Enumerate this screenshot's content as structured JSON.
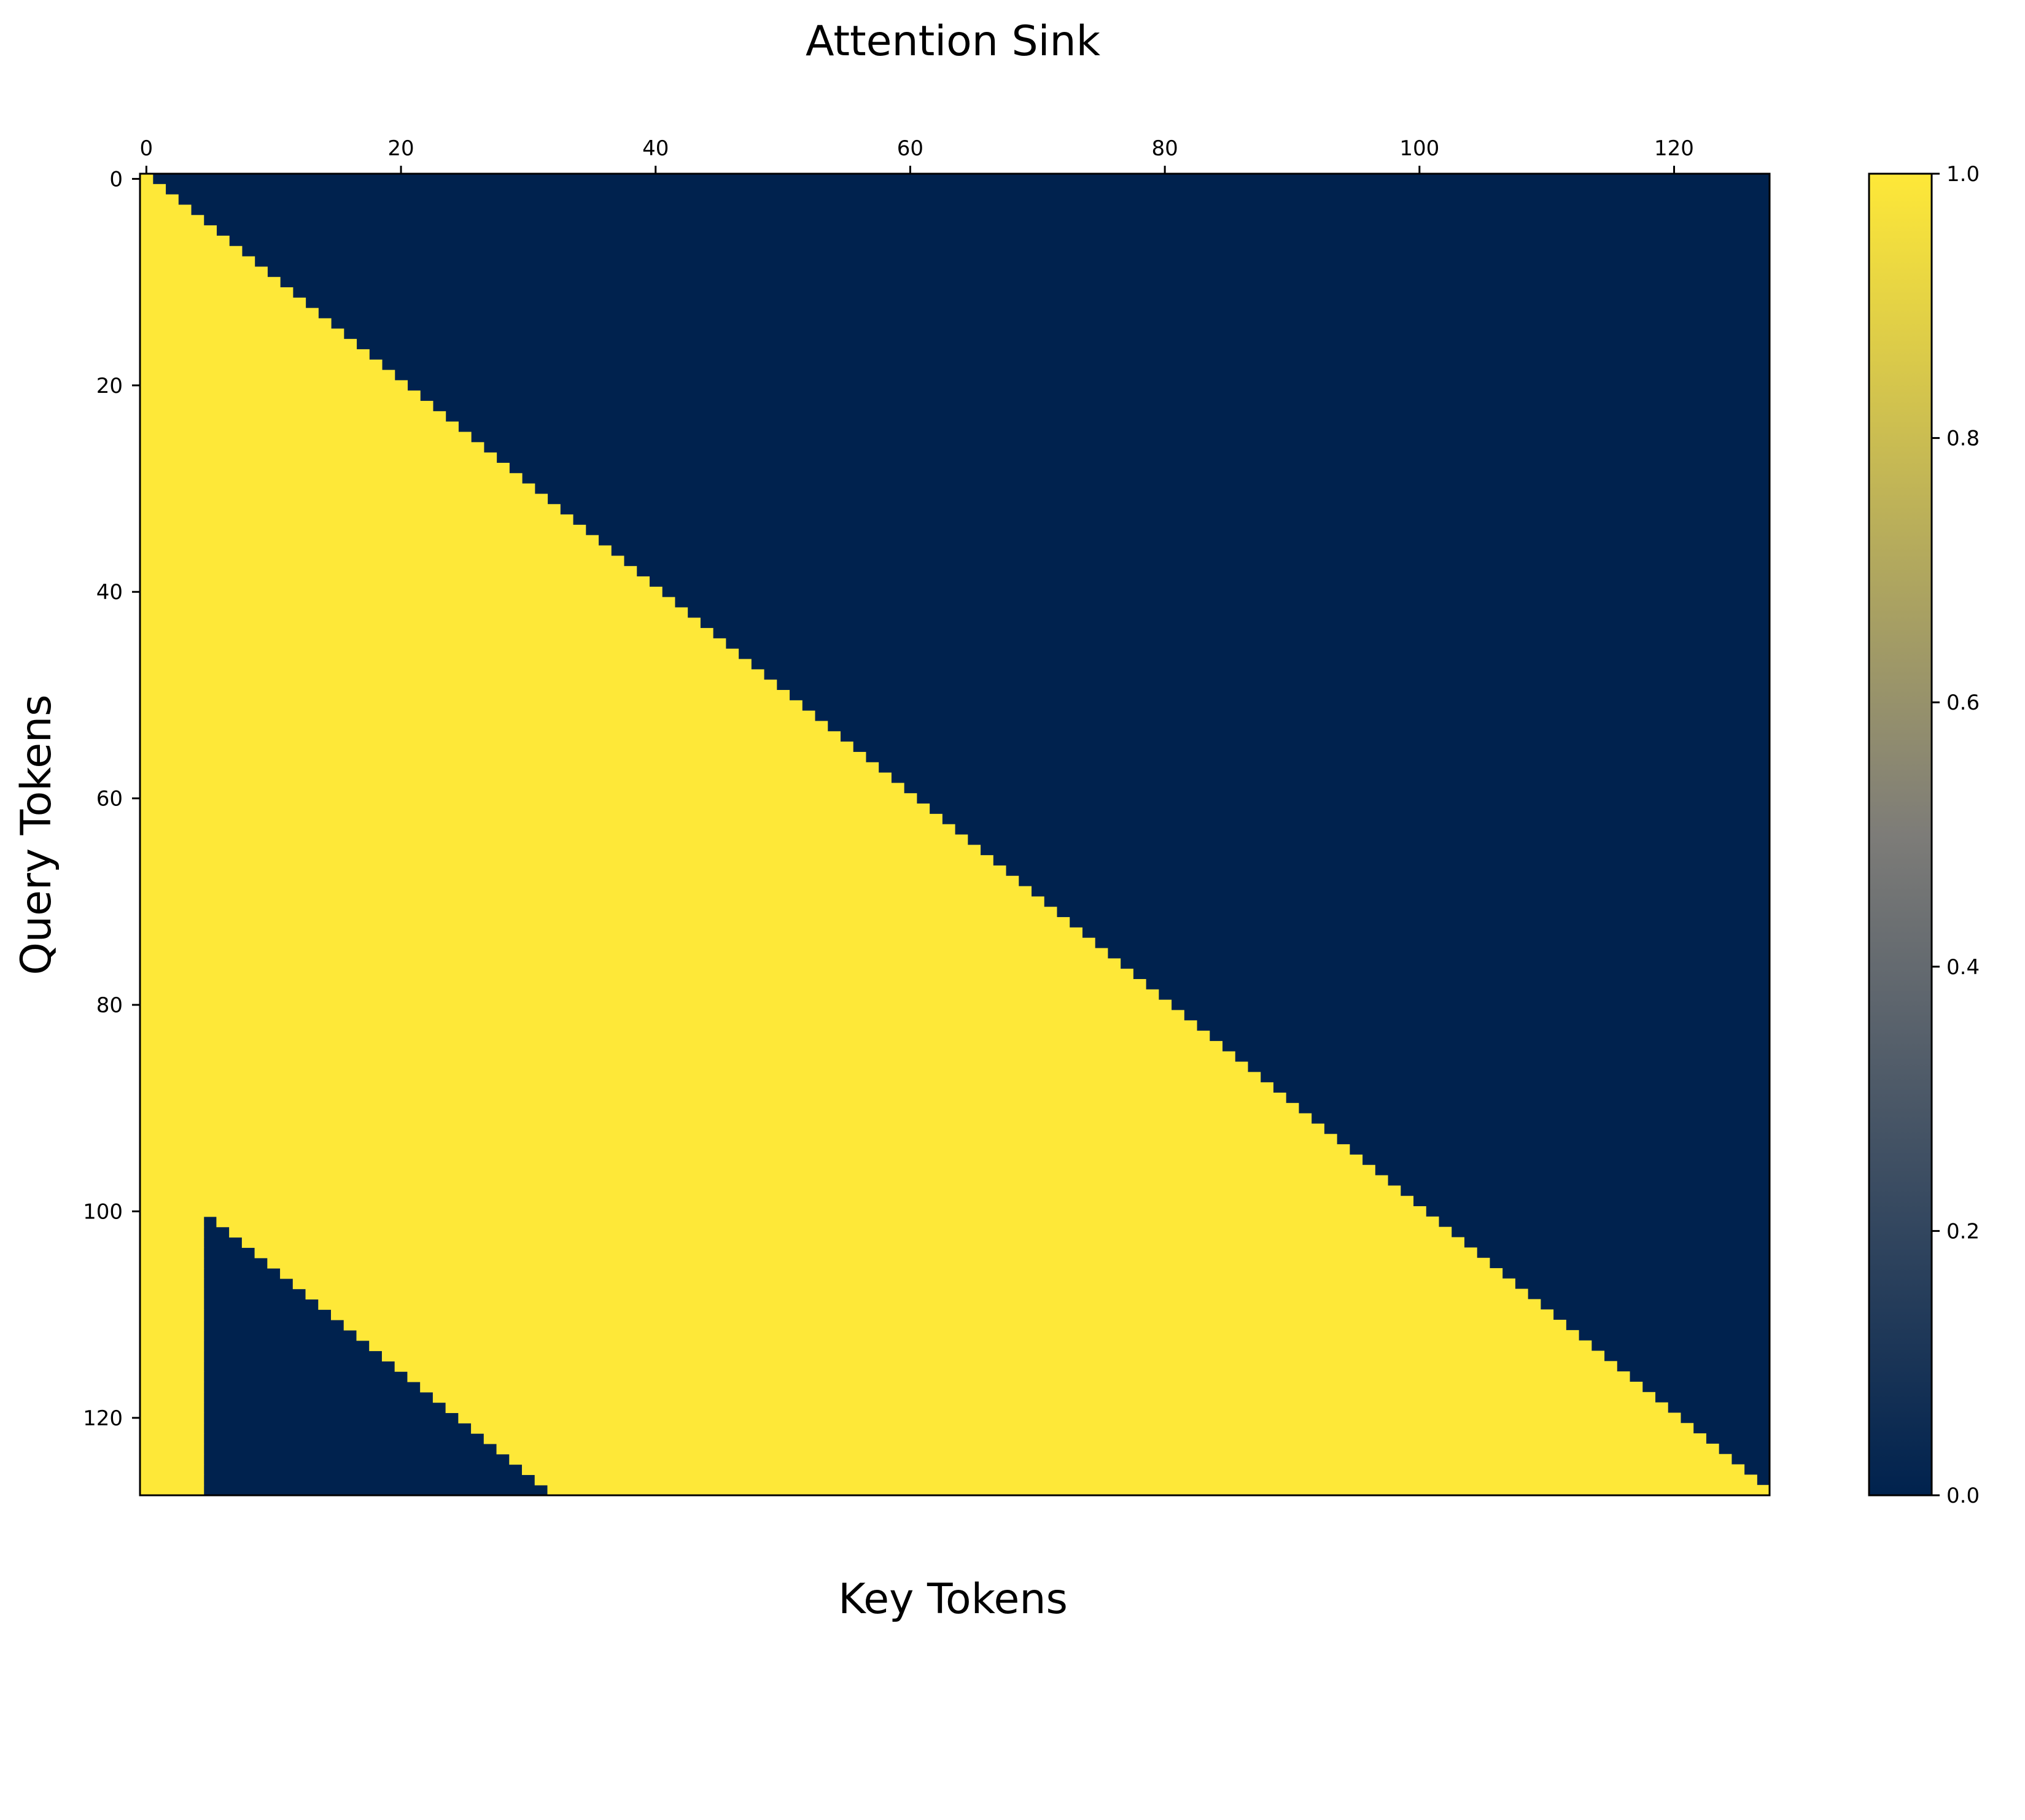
{
  "chart_data": {
    "type": "heatmap",
    "title": "Attention Sink",
    "xlabel": "Key Tokens",
    "ylabel": "Query Tokens",
    "n_query": 128,
    "n_key": 128,
    "sink_tokens": 5,
    "window_size": 96,
    "rule": "value = 1 if key <= query and (key < sink_tokens or query - key < window_size), else 0",
    "value_range": [
      0.0,
      1.0
    ],
    "colormap": "cividis",
    "colormap_stops": [
      "#00224e",
      "#7d7c78",
      "#fee838"
    ],
    "low_color": "#00224e",
    "high_color": "#fee838",
    "xticks": [
      0,
      20,
      40,
      60,
      80,
      100,
      120
    ],
    "xtick_position": "top",
    "yticks": [
      0,
      20,
      40,
      60,
      80,
      100,
      120
    ],
    "colorbar_ticks": [
      "0.0",
      "0.2",
      "0.4",
      "0.6",
      "0.8",
      "1.0"
    ],
    "colorbar_placement": "right"
  }
}
